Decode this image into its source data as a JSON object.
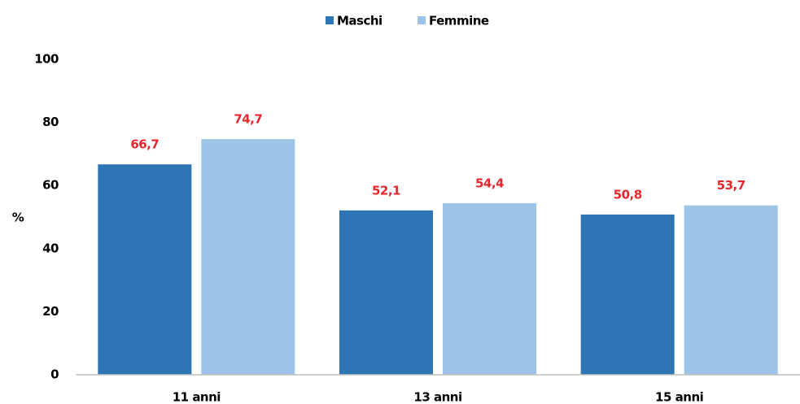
{
  "chart_data": {
    "type": "bar",
    "y_label": "%",
    "categories": [
      "11 anni",
      "13 anni",
      "15 anni"
    ],
    "series": [
      {
        "name": "Maschi",
        "color": "#2e75b6",
        "values": [
          66.7,
          52.1,
          50.8
        ],
        "value_labels": [
          "66,7",
          "52,1",
          "50,8"
        ]
      },
      {
        "name": "Femmine",
        "color": "#9dc3e6",
        "values": [
          74.7,
          54.4,
          53.7
        ],
        "value_labels": [
          "74,7",
          "54,4",
          "53,7"
        ]
      }
    ],
    "ylim": [
      0,
      100
    ],
    "yticks": [
      0,
      20,
      40,
      60,
      80,
      100
    ],
    "grid": false,
    "legend": "top",
    "value_label_color": "#e8262b"
  }
}
